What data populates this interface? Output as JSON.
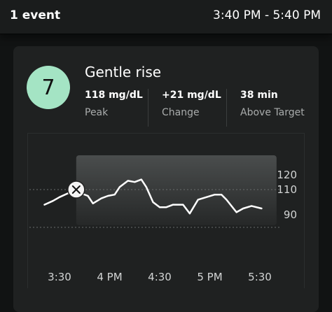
{
  "header": {
    "event_count": "1 event",
    "time_range": "3:40 PM - 5:40 PM"
  },
  "event": {
    "score": "7",
    "title": "Gentle rise",
    "stats": [
      {
        "value": "118  mg/dL",
        "label": "Peak"
      },
      {
        "value": "+21  mg/dL",
        "label": "Change"
      },
      {
        "value": "38  min",
        "label": "Above Target"
      }
    ],
    "meal_icon": "fork-knife-icon"
  },
  "colors": {
    "badge": "#a4e4c4",
    "background": "#111313",
    "card": "#1f2121",
    "line": "#ffffff"
  },
  "chart_data": {
    "type": "line",
    "x_ticks": [
      "3:30",
      "4 PM",
      "4:30",
      "5 PM",
      "5:30"
    ],
    "y_ticks": [
      "120",
      "110",
      "90"
    ],
    "reference_lines": [
      110,
      80
    ],
    "highlight_window": [
      "3:40 PM",
      "5:40 PM"
    ],
    "meal_marker_time": "3:40 PM",
    "series": [
      {
        "values": [
          [
            "3:21 PM",
            98
          ],
          [
            "3:26 PM",
            101
          ],
          [
            "3:30 PM",
            104
          ],
          [
            "3:35 PM",
            107
          ],
          [
            "3:37 PM",
            107
          ],
          [
            "3:40 PM",
            110
          ],
          [
            "3:43 PM",
            107
          ],
          [
            "3:47 PM",
            105
          ],
          [
            "3:50 PM",
            99
          ],
          [
            "3:55 PM",
            103
          ],
          [
            "3:59 PM",
            105
          ],
          [
            "4:03 PM",
            106
          ],
          [
            "4:06 PM",
            112
          ],
          [
            "4:11 PM",
            117
          ],
          [
            "4:15 PM",
            116
          ],
          [
            "4:19 PM",
            118
          ],
          [
            "4:22 PM",
            112
          ],
          [
            "4:26 PM",
            100
          ],
          [
            "4:30 PM",
            96
          ],
          [
            "4:34 PM",
            96
          ],
          [
            "4:38 PM",
            98
          ],
          [
            "4:44 PM",
            98
          ],
          [
            "4:48 PM",
            91
          ],
          [
            "4:53 PM",
            102
          ],
          [
            "4:58 PM",
            104
          ],
          [
            "5:03 PM",
            106
          ],
          [
            "5:07 PM",
            106
          ],
          [
            "5:10 PM",
            102
          ],
          [
            "5:16 PM",
            92
          ],
          [
            "5:20 PM",
            95
          ],
          [
            "5:25 PM",
            97
          ],
          [
            "5:31 PM",
            95
          ]
        ]
      }
    ]
  }
}
